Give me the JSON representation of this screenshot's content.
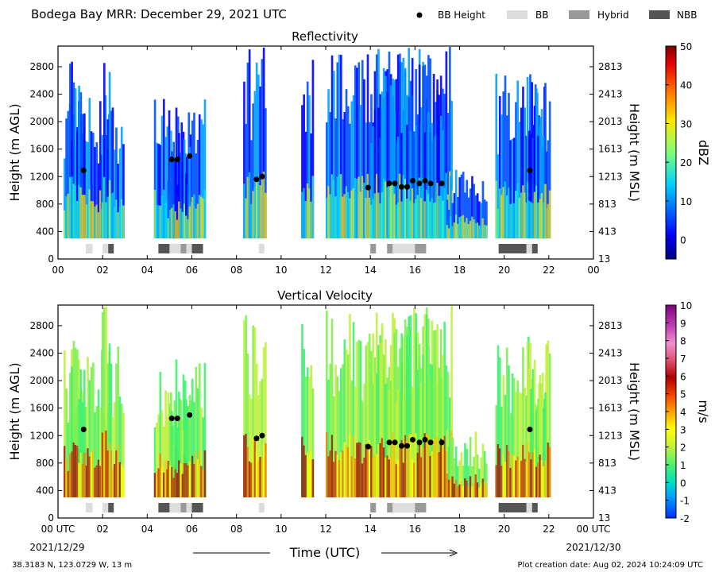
{
  "header": {
    "title": "Bodega Bay MRR:  December 29, 2021 UTC",
    "legend": [
      {
        "label": "BB Height",
        "kind": "dot",
        "color": "#000000"
      },
      {
        "label": "BB",
        "kind": "box",
        "color": "#dddddd"
      },
      {
        "label": "Hybrid",
        "kind": "box",
        "color": "#999999"
      },
      {
        "label": "NBB",
        "kind": "box",
        "color": "#555555"
      }
    ]
  },
  "footer": {
    "location": "38.3183 N, 123.0729 W, 13 m",
    "creation": "Plot creation date: Aug 02, 2024 10:24:09 UTC",
    "xlabel": "Time (UTC)"
  },
  "chart_data": [
    {
      "type": "heatmap",
      "title": "Reflectivity",
      "ylabel_left": "Height (m AGL)",
      "ylabel_right": "Height (m MSL)",
      "colorbar_label": "dBZ",
      "xlim": [
        0,
        24
      ],
      "ylim": [
        0,
        3100
      ],
      "x_ticks": [
        "00",
        "02",
        "04",
        "06",
        "08",
        "10",
        "12",
        "14",
        "16",
        "18",
        "20",
        "22",
        "00"
      ],
      "y_ticks_left": [
        "0",
        "400",
        "800",
        "1200",
        "1600",
        "2000",
        "2400",
        "2800"
      ],
      "y_ticks_right": [
        "13",
        "413",
        "813",
        "1213",
        "1613",
        "2013",
        "2413",
        "2813"
      ],
      "colorbar_range": [
        -5,
        50
      ],
      "colorbar_ticks": [
        "0",
        "10",
        "20",
        "30",
        "40",
        "50"
      ]
    },
    {
      "type": "heatmap",
      "title": "Vertical Velocity",
      "ylabel_left": "Height (m AGL)",
      "ylabel_right": "Height (m MSL)",
      "colorbar_label": "m/s",
      "xlim": [
        0,
        24
      ],
      "ylim": [
        0,
        3100
      ],
      "x_ticks": [
        "00 UTC",
        "02",
        "04",
        "06",
        "08",
        "10",
        "12",
        "14",
        "16",
        "18",
        "20",
        "22",
        "00 UTC"
      ],
      "x_date_labels": [
        "2021/12/29",
        "2021/12/30"
      ],
      "y_ticks_left": [
        "0",
        "400",
        "800",
        "1200",
        "1600",
        "2000",
        "2400",
        "2800"
      ],
      "y_ticks_right": [
        "13",
        "413",
        "813",
        "1213",
        "1613",
        "2013",
        "2413",
        "2813"
      ],
      "colorbar_range": [
        -2,
        10
      ],
      "colorbar_ticks": [
        "-2",
        "-1",
        "0",
        "1",
        "2",
        "3",
        "4",
        "5",
        "6",
        "7",
        "8",
        "9",
        "10"
      ]
    }
  ],
  "bb_height_points": [
    {
      "t": 1.15,
      "h": 1290
    },
    {
      "t": 5.1,
      "h": 1450
    },
    {
      "t": 5.35,
      "h": 1450
    },
    {
      "t": 5.9,
      "h": 1500
    },
    {
      "t": 8.9,
      "h": 1160
    },
    {
      "t": 9.15,
      "h": 1200
    },
    {
      "t": 13.9,
      "h": 1040
    },
    {
      "t": 14.85,
      "h": 1100
    },
    {
      "t": 15.1,
      "h": 1100
    },
    {
      "t": 15.4,
      "h": 1050
    },
    {
      "t": 15.65,
      "h": 1050
    },
    {
      "t": 15.9,
      "h": 1140
    },
    {
      "t": 16.2,
      "h": 1100
    },
    {
      "t": 16.45,
      "h": 1140
    },
    {
      "t": 16.7,
      "h": 1100
    },
    {
      "t": 17.2,
      "h": 1100
    },
    {
      "t": 21.15,
      "h": 1290
    }
  ],
  "bb_type_segments": [
    {
      "start": 1.25,
      "end": 1.55,
      "type": "BB"
    },
    {
      "start": 2.0,
      "end": 2.25,
      "type": "BB"
    },
    {
      "start": 2.25,
      "end": 2.5,
      "type": "NBB"
    },
    {
      "start": 4.5,
      "end": 5.0,
      "type": "NBB"
    },
    {
      "start": 5.0,
      "end": 5.5,
      "type": "BB"
    },
    {
      "start": 5.5,
      "end": 5.75,
      "type": "Hybrid"
    },
    {
      "start": 5.75,
      "end": 6.0,
      "type": "BB"
    },
    {
      "start": 6.0,
      "end": 6.5,
      "type": "NBB"
    },
    {
      "start": 9.0,
      "end": 9.25,
      "type": "BB"
    },
    {
      "start": 14.0,
      "end": 14.25,
      "type": "Hybrid"
    },
    {
      "start": 14.75,
      "end": 15.0,
      "type": "Hybrid"
    },
    {
      "start": 15.0,
      "end": 16.0,
      "type": "BB"
    },
    {
      "start": 16.0,
      "end": 16.5,
      "type": "Hybrid"
    },
    {
      "start": 19.75,
      "end": 21.0,
      "type": "NBB"
    },
    {
      "start": 21.0,
      "end": 21.25,
      "type": "BB"
    },
    {
      "start": 21.25,
      "end": 21.5,
      "type": "NBB"
    }
  ]
}
